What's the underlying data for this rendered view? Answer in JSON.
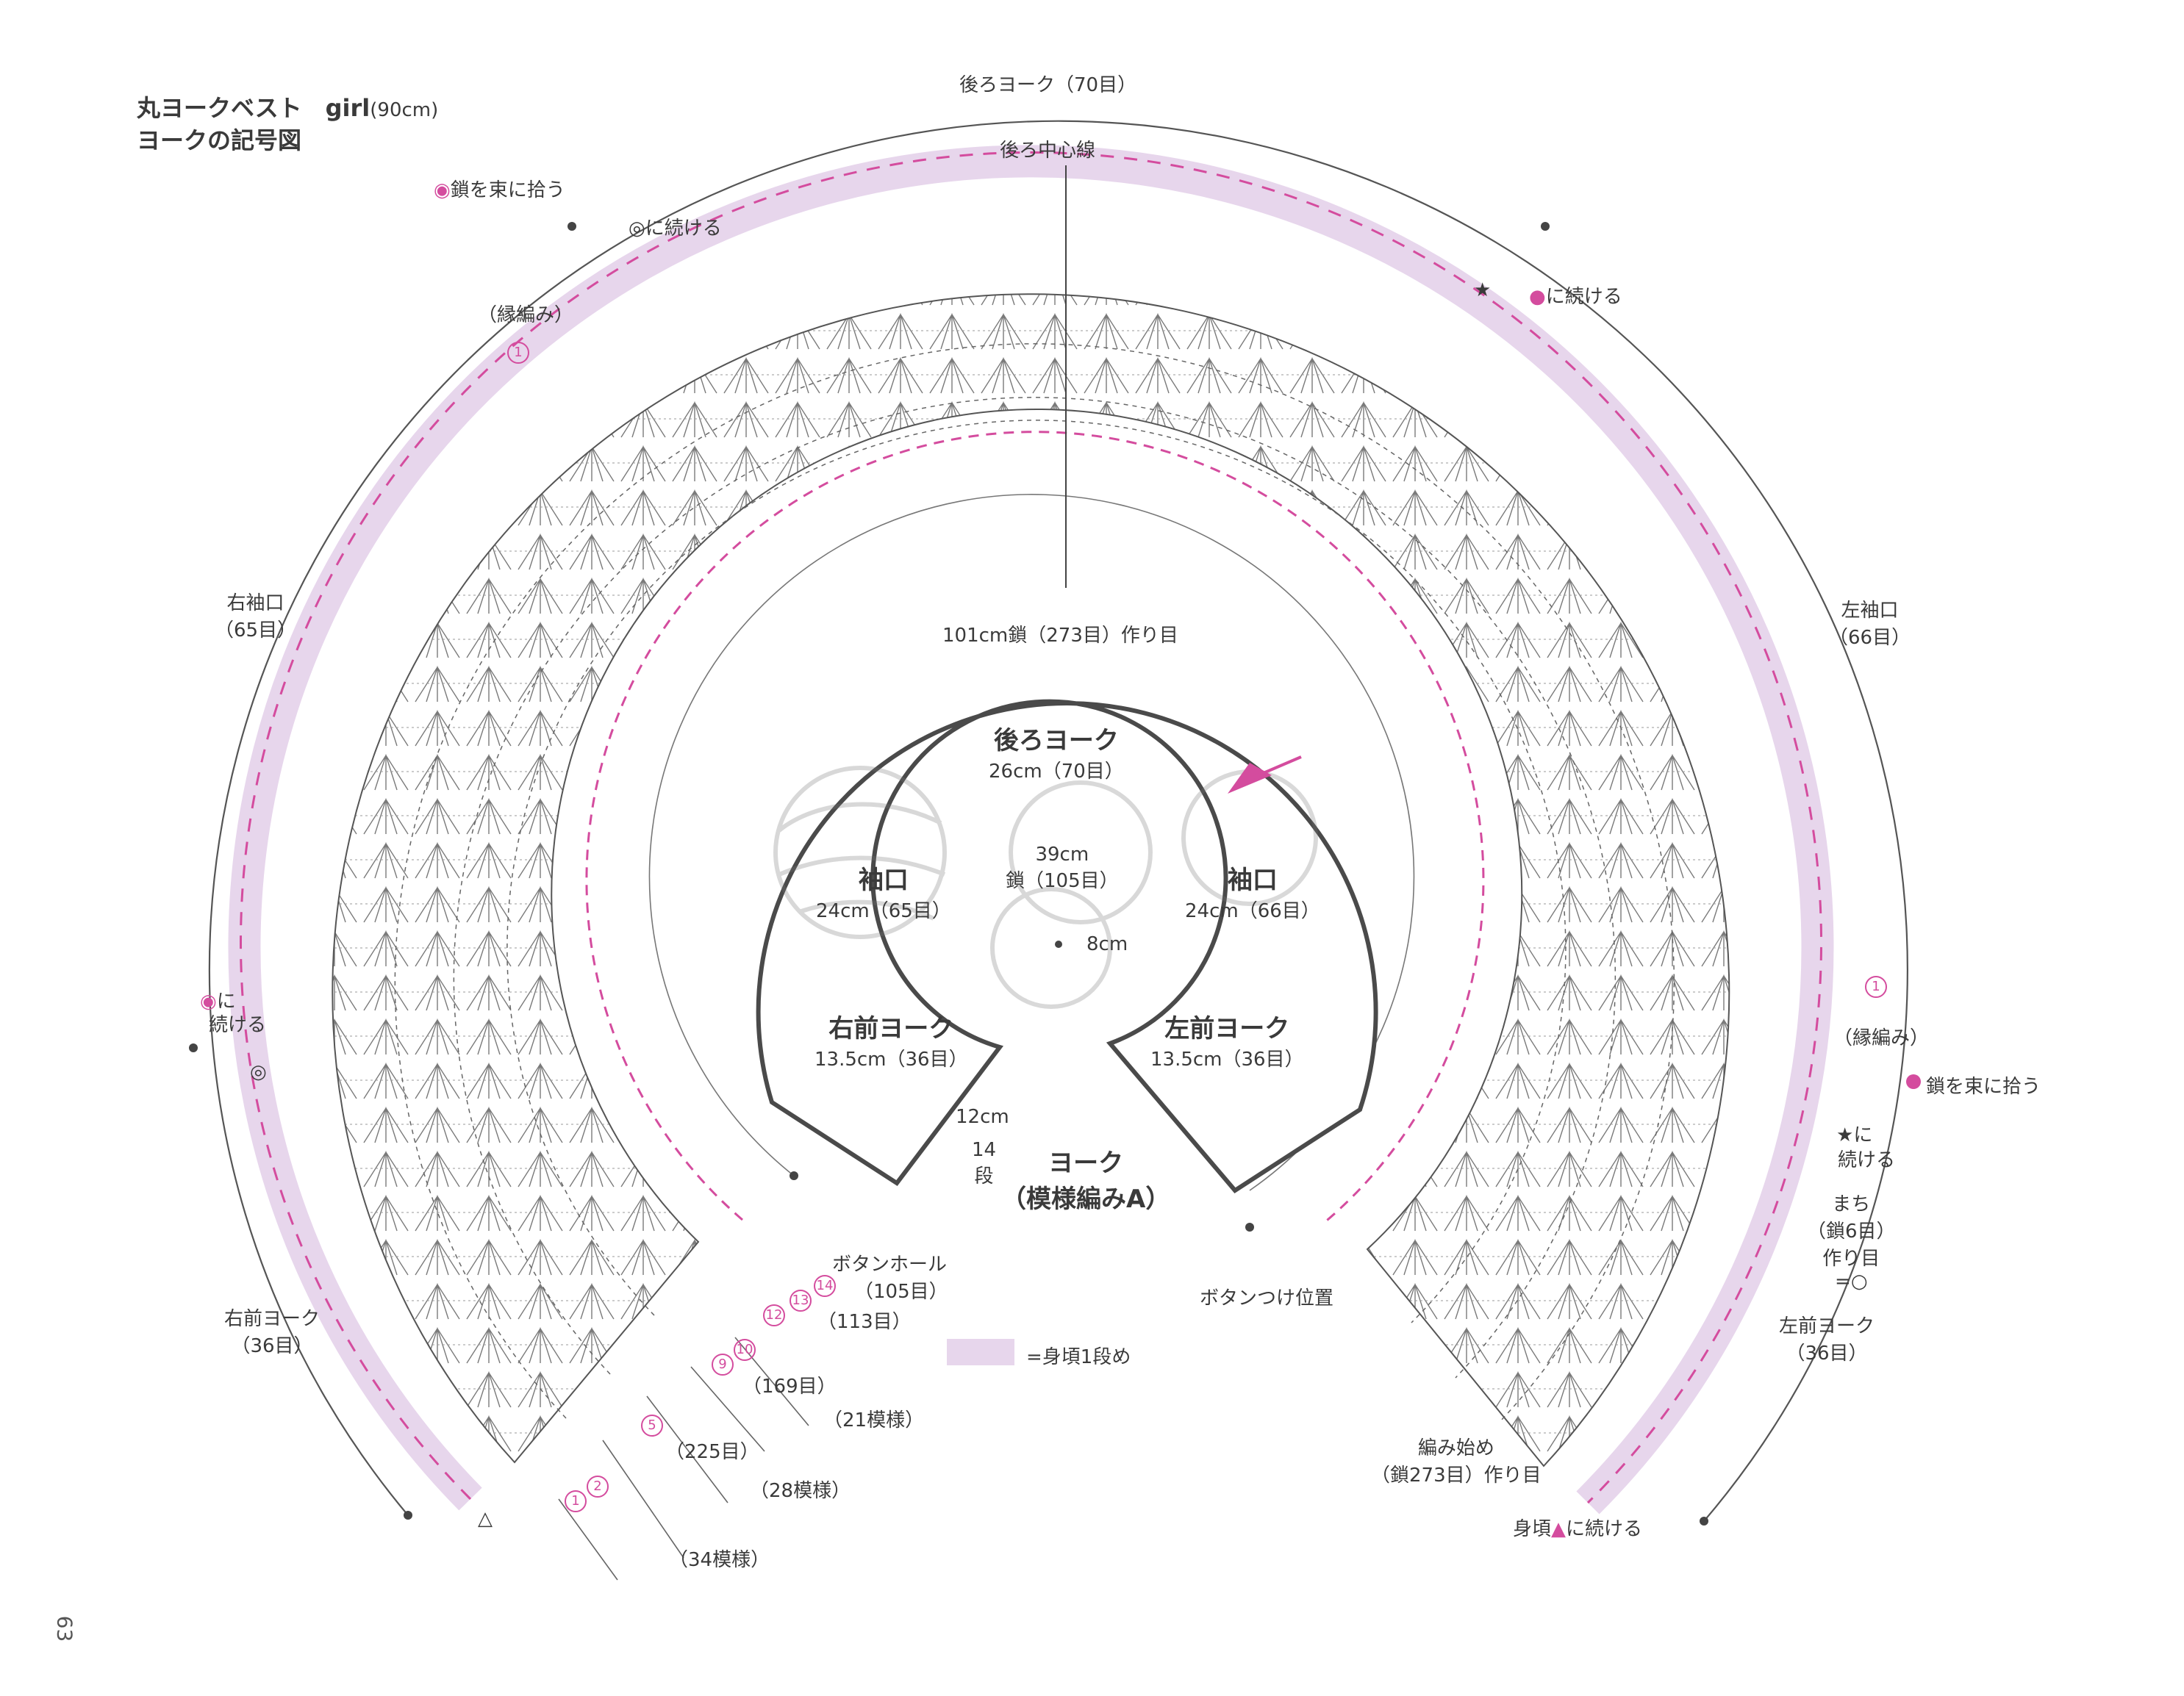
{
  "title": {
    "line1": "丸ヨークベスト　girl",
    "line1_size": "(90cm)",
    "line2": "ヨークの記号図"
  },
  "labels": {
    "back_yoke_top": "後ろヨーク（70目）",
    "back_center": "後ろ中心線",
    "pick_bundle_left": "鎖を束に拾う",
    "continue_dbl_circle": "に続ける",
    "edging_left": "（縁編み）",
    "star_continue_pink": "に続ける",
    "right_sleeve": "右袖口",
    "right_sleeve_count": "（65目）",
    "left_sleeve": "左袖口",
    "left_sleeve_count": "（66目）",
    "chain_start": "101cm鎖（273目）作り目",
    "left_continue_a": "に",
    "left_continue_b": "続ける",
    "edging_right": "（縁編み）",
    "pick_bundle_right": "鎖を束に拾う",
    "star_continue_a": "に",
    "star_continue_b": "続ける",
    "gusset_a": "まち",
    "gusset_b": "（鎖6目）",
    "gusset_c": "作り目",
    "gusset_d": "=○",
    "buttonhole_a": "ボタンホール",
    "buttonhole_b": "（105目）",
    "count_113": "（113目）",
    "count_169": "（169目）",
    "count_21": "（21模様）",
    "count_225": "（225目）",
    "count_28": "（28模様）",
    "count_34": "（34模様）",
    "right_front_yoke": "右前ヨーク",
    "right_front_count": "（36目）",
    "left_front_yoke": "左前ヨーク",
    "left_front_count": "（36目）",
    "button_position": "ボタンつけ位置",
    "start_a": "編み始め",
    "start_b": "（鎖273目）作り目",
    "continue_body_a": "身頃",
    "continue_body_b": "に続ける",
    "legend": "=身頃1段め",
    "page_number": "63"
  },
  "schematic": {
    "back_yoke": "後ろヨーク",
    "back_yoke_size": "26cm（70目）",
    "sleeve_left": "袖口",
    "sleeve_left_size": "24cm（65目）",
    "sleeve_right": "袖口",
    "sleeve_right_size": "24cm（66目）",
    "neck_a": "39cm",
    "neck_b": "鎖（105目）",
    "center": "8cm",
    "right_front": "右前ヨーク",
    "right_front_size": "13.5cm（36目）",
    "left_front": "左前ヨーク",
    "left_front_size": "13.5cm（36目）",
    "depth": "12cm",
    "rows_a": "14",
    "rows_b": "段",
    "yoke": "ヨーク",
    "pattern": "（模様編みA）"
  },
  "row_markers": [
    "1",
    "2",
    "5",
    "9",
    "10",
    "12",
    "13",
    "14"
  ],
  "colors": {
    "accent_pink": "#d44c9e",
    "light_pink": "#e7d6ec",
    "ink": "#3a3a3a",
    "grey": "#8c8c8c"
  }
}
